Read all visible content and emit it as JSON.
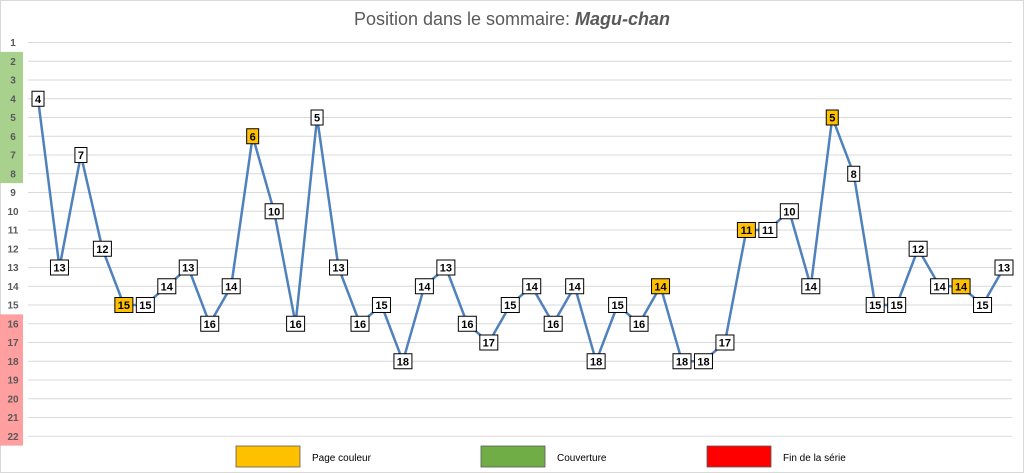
{
  "chart_data": {
    "type": "line",
    "title": "Position dans le sommaire: ",
    "title_emphasis": "Magu-chan",
    "ylim": [
      1,
      22
    ],
    "y_inverted": true,
    "y_ticks": [
      "1",
      "2",
      "3",
      "4",
      "5",
      "6",
      "7",
      "8",
      "9",
      "10",
      "11",
      "12",
      "13",
      "14",
      "15",
      "16",
      "17",
      "18",
      "19",
      "20",
      "21",
      "22"
    ],
    "grid": true,
    "zones": [
      {
        "label": "Couverture",
        "from": 2,
        "to": 8,
        "color": "#a9d18e"
      },
      {
        "label": "Fin de la série",
        "from": 16,
        "to": 22,
        "color": "#ff9f9f"
      }
    ],
    "series": [
      {
        "values": [
          4,
          13,
          7,
          12,
          15,
          15,
          14,
          13,
          16,
          14,
          6,
          10,
          16,
          5,
          13,
          16,
          15,
          18,
          14,
          13,
          16,
          17,
          15,
          14,
          16,
          14,
          18,
          15,
          16,
          14,
          18,
          18,
          17,
          11,
          11,
          10,
          14,
          5,
          8,
          15,
          15,
          12,
          14,
          14,
          15,
          13
        ],
        "highlight": [
          false,
          false,
          false,
          false,
          true,
          false,
          false,
          false,
          false,
          false,
          true,
          false,
          false,
          false,
          false,
          false,
          false,
          false,
          false,
          false,
          false,
          false,
          false,
          false,
          false,
          false,
          false,
          false,
          false,
          true,
          false,
          false,
          false,
          true,
          false,
          false,
          false,
          true,
          false,
          false,
          false,
          false,
          false,
          true,
          false,
          false
        ]
      }
    ],
    "legend": [
      {
        "label": "Page couleur",
        "color": "#ffc000"
      },
      {
        "label": "Couverture",
        "color": "#70ad47"
      },
      {
        "label": "Fin de la série",
        "color": "#ff0000"
      }
    ],
    "legend_position": "bottom",
    "colors": {
      "line": "#4f81bd",
      "grid": "#d9d9d9",
      "label_box": "#ffffff",
      "label_highlight": "#ffc000"
    }
  }
}
